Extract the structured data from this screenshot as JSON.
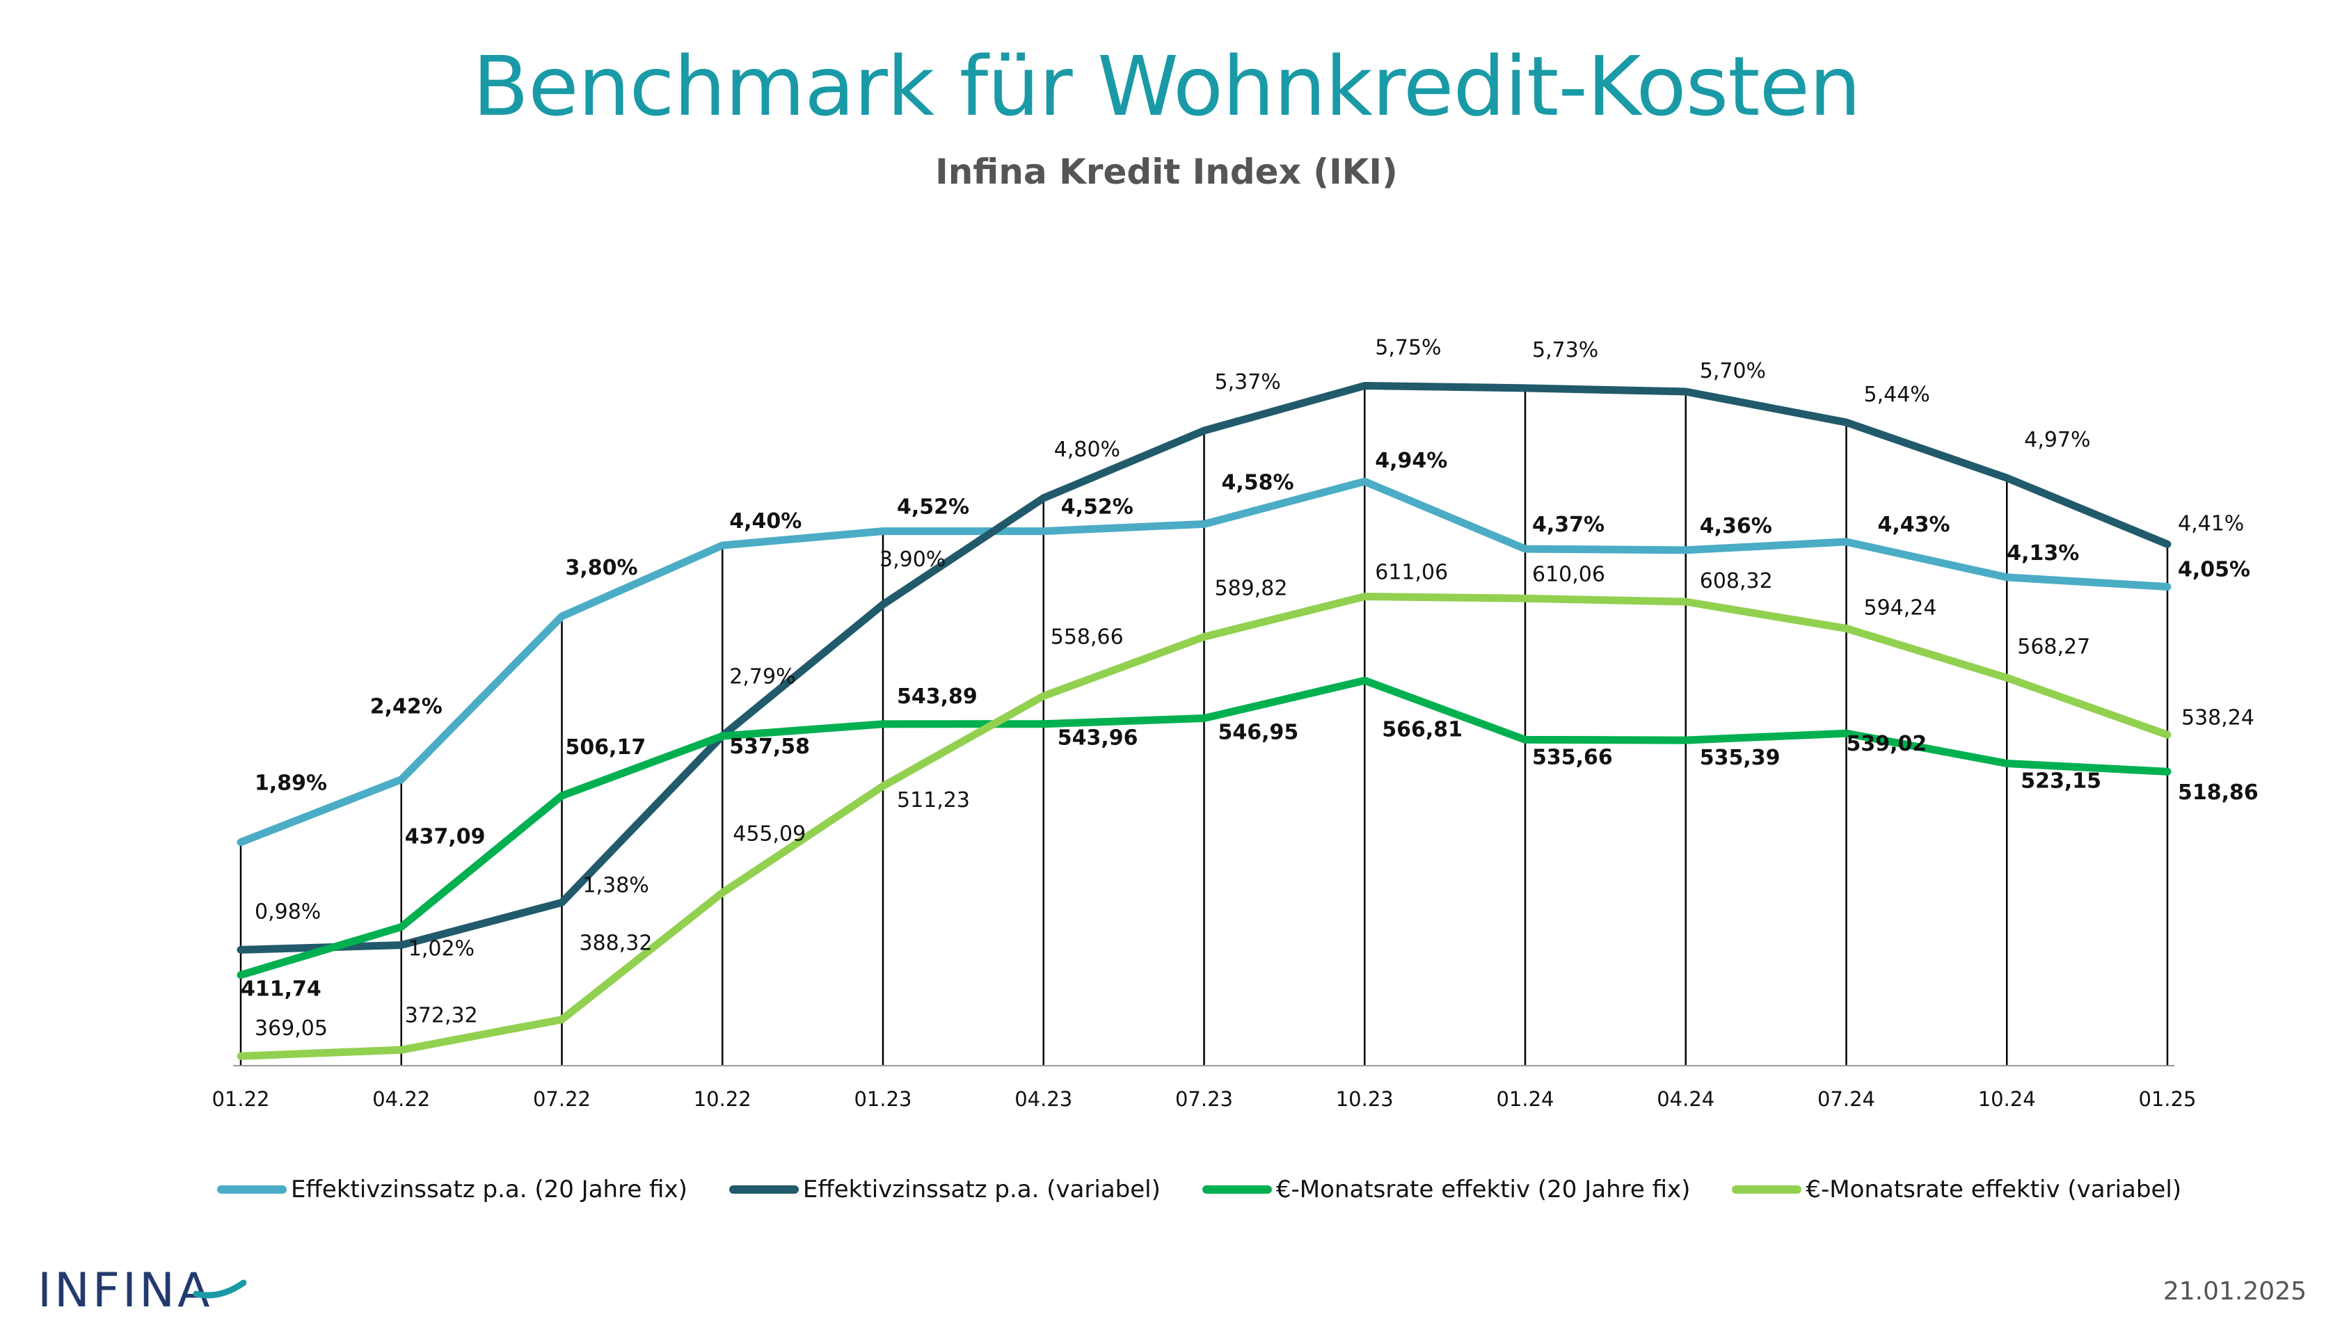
{
  "header": {
    "title": "Benchmark für Wohnkredit-Kosten",
    "subtitle": "Infina Kredit Index (IKI)"
  },
  "footer": {
    "logo_text": "INFINA",
    "date": "21.01.2025"
  },
  "colors": {
    "title": "#1a9aa6",
    "fix_rate": "#4bacc6",
    "variable_rate": "#215a6b",
    "fix_monthly": "#00b050",
    "variable_monthly": "#92d050",
    "logo_dark": "#233a6e",
    "logo_accent": "#1a9aa6"
  },
  "chart_data": {
    "type": "line",
    "title": "Benchmark für Wohnkredit-Kosten",
    "subtitle": "Infina Kredit Index (IKI)",
    "xlabel": "",
    "ylabel": "",
    "categories": [
      "01.22",
      "04.22",
      "07.22",
      "10.22",
      "01.23",
      "04.23",
      "07.23",
      "10.23",
      "01.24",
      "04.24",
      "07.24",
      "10.24",
      "01.25"
    ],
    "axes": {
      "rate_percent": {
        "ylim": [
          0,
          6.5
        ]
      },
      "monthly_eur": {
        "ylim": [
          364,
          620
        ]
      }
    },
    "grid": false,
    "legend_position": "bottom",
    "series": [
      {
        "name": "Effektivzinssatz p.a. (20 Jahre fix)",
        "key": "fix_rate",
        "axis": "rate_percent",
        "unit": "%",
        "label_bold": true,
        "values": [
          1.89,
          2.42,
          3.8,
          4.4,
          4.52,
          4.52,
          4.58,
          4.94,
          4.37,
          4.36,
          4.43,
          4.13,
          4.05
        ],
        "labels": [
          "1,89%",
          "2,42%",
          "3,80%",
          "4,40%",
          "4,52%",
          "4,52%",
          "4,58%",
          "4,94%",
          "4,37%",
          "4,36%",
          "4,43%",
          "4,13%",
          "4,05%"
        ]
      },
      {
        "name": "Effektivzinssatz p.a. (variabel)",
        "key": "variable_rate",
        "axis": "rate_percent",
        "unit": "%",
        "label_bold": false,
        "values": [
          0.98,
          1.02,
          1.38,
          2.79,
          3.9,
          4.8,
          5.37,
          5.75,
          5.73,
          5.7,
          5.44,
          4.97,
          4.41
        ],
        "labels": [
          "0,98%",
          "1,02%",
          "1,38%",
          "2,79%",
          "3,90%",
          "4,80%",
          "5,37%",
          "5,75%",
          "5,73%",
          "5,70%",
          "5,44%",
          "4,97%",
          "4,41%"
        ]
      },
      {
        "name": "€-Monatsrate effektiv (20 Jahre fix)",
        "key": "fix_monthly",
        "axis": "monthly_eur",
        "unit": "€",
        "label_bold": true,
        "values": [
          411.74,
          437.09,
          506.17,
          537.58,
          543.89,
          543.96,
          546.95,
          566.81,
          535.66,
          535.39,
          539.02,
          523.15,
          518.86
        ],
        "labels": [
          "411,74",
          "437,09",
          "506,17",
          "537,58",
          "543,89",
          "543,96",
          "546,95",
          "566,81",
          "535,66",
          "535,39",
          "539,02",
          "523,15",
          "518,86"
        ]
      },
      {
        "name": "€-Monatsrate effektiv (variabel)",
        "key": "variable_monthly",
        "axis": "monthly_eur",
        "unit": "€",
        "label_bold": false,
        "values": [
          369.05,
          372.32,
          388.32,
          455.09,
          511.23,
          558.66,
          589.82,
          611.06,
          610.06,
          608.32,
          594.24,
          568.27,
          538.24
        ],
        "labels": [
          "369,05",
          "372,32",
          "388,32",
          "455,09",
          "511,23",
          "558,66",
          "589,82",
          "611,06",
          "610,06",
          "608,32",
          "594,24",
          "568,27",
          "538,24"
        ]
      }
    ]
  }
}
